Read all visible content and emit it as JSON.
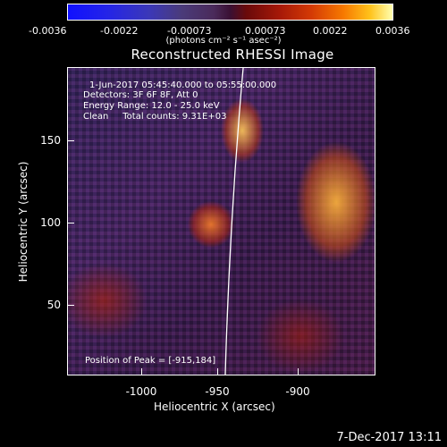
{
  "colorbar": {
    "ticks": [
      "-0.0036",
      "-0.0022",
      "-0.00073",
      "0.00073",
      "0.0022",
      "0.0036"
    ],
    "unit": "(photons cm⁻² s⁻¹ asec⁻²)"
  },
  "title": "Reconstructed RHESSI Image",
  "info": {
    "time": "1-Jun-2017 05:45:40.000 to 05:55:00.000",
    "detectors": "Detectors: 3F 6F 8F, Att 0",
    "energy": "Energy Range: 12.0 - 25.0 keV",
    "clean": "Clean     Total counts: 9.31E+03",
    "peak": "Position of Peak = [-915,184]"
  },
  "axes": {
    "xlabel": "Heliocentric X (arcsec)",
    "ylabel": "Heliocentric Y (arcsec)",
    "xticks": [
      "-1000",
      "-950",
      "-900"
    ],
    "yticks": [
      "150",
      "100",
      "50"
    ]
  },
  "footer": {
    "date": "7-Dec-2017 13:11"
  }
}
